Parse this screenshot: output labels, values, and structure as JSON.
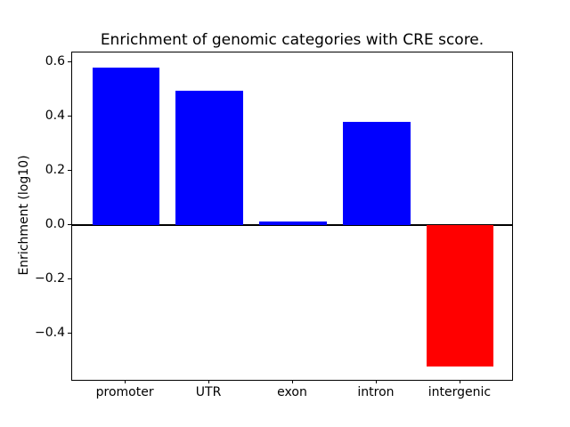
{
  "figure": {
    "background": "#ffffff",
    "axis_color": "#000000",
    "text_color": "#000000"
  },
  "chart_data": {
    "type": "bar",
    "title": "Enrichment of genomic categories with CRE score.",
    "xlabel": "",
    "ylabel": "Enrichment (log10)",
    "categories": [
      "promoter",
      "UTR",
      "exon",
      "intron",
      "intergenic"
    ],
    "values": [
      0.58,
      0.495,
      0.015,
      0.38,
      -0.52
    ],
    "bar_colors": [
      "#0000ff",
      "#0000ff",
      "#0000ff",
      "#0000ff",
      "#ff0000"
    ],
    "positive_color": "#0000ff",
    "negative_color": "#ff0000",
    "yticks": [
      0.6,
      0.4,
      0.2,
      0.0,
      -0.2,
      -0.4
    ],
    "ytick_labels": [
      "0.6",
      "0.4",
      "0.2",
      "0.0",
      "−0.2",
      "−0.4"
    ],
    "ylim": [
      -0.575,
      0.635
    ],
    "xlim": [
      -0.64,
      4.64
    ],
    "bar_width_fraction": 0.8,
    "grid": false,
    "legend": null,
    "zero_line": true
  }
}
